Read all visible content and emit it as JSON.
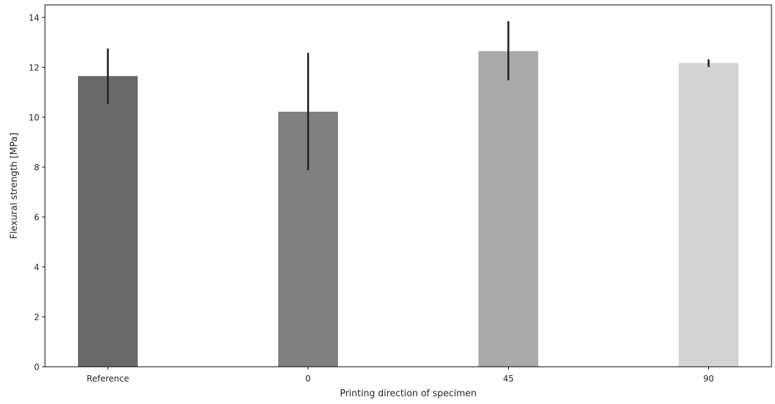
{
  "chart_data": {
    "type": "bar",
    "title": "",
    "xlabel": "Printing direction of specimen",
    "ylabel": "Flexural strength [MPa]",
    "categories": [
      "Reference",
      "0",
      "45",
      "90"
    ],
    "values": [
      11.65,
      10.22,
      12.65,
      12.17
    ],
    "error_low": [
      10.53,
      7.88,
      11.48,
      12.01
    ],
    "error_high": [
      12.75,
      12.58,
      13.85,
      12.32
    ],
    "ylim": [
      0,
      14.5
    ],
    "yticks": [
      0,
      2,
      4,
      6,
      8,
      10,
      12,
      14
    ],
    "grid": false,
    "bar_colors": [
      "#696969",
      "#808080",
      "#a9a9a9",
      "#d3d3d3"
    ],
    "error_bar_color": "#262626"
  }
}
